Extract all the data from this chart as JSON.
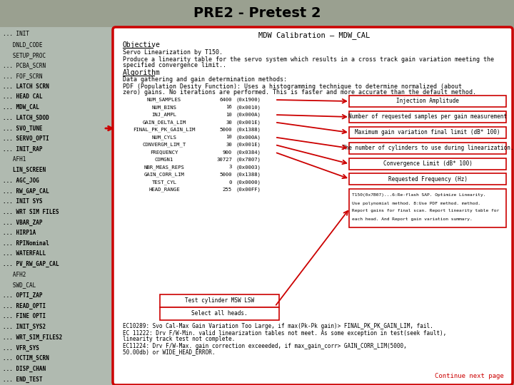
{
  "title": "PRE2 - Pretest 2",
  "title_bg": "#9aA48a",
  "header_text": "MDW Calibration – MDW_CAL",
  "objective_title": "Objective",
  "objective_body": "Servo Linearization by T150.\nProduce a linearity table for the servo system which results in a cross track gain variation meeting the\nspecified convergence limit..",
  "algorithm_title": "Algorithm",
  "algorithm_body": "Data gathering and gain determination methods:\nPDF (Population Desity Function): Uses a histogramming technique to determine normalized (about\nzero) gains. No iterations are performed. This is faster and more accurate than the default method.",
  "sidebar_items": [
    [
      "... INIT",
      false
    ],
    [
      "   DNLD_CODE",
      false
    ],
    [
      "   SETUP_PROC",
      false
    ],
    [
      "... PCBA_SCRN",
      false
    ],
    [
      "... FOF_SCRN",
      false
    ],
    [
      "... LATCH SCRN",
      true
    ],
    [
      "... HEAD CAL",
      true
    ],
    [
      "... MDW_CAL",
      true
    ],
    [
      "... LATCH_SDOD",
      true
    ],
    [
      "... SVO_TUNE",
      true
    ],
    [
      "... SERVO_OPTI",
      true
    ],
    [
      "... INIT_RAP",
      true
    ],
    [
      "   AFH1",
      false
    ],
    [
      "   LIN_SCREEN",
      true
    ],
    [
      "... AGC_JOG",
      true
    ],
    [
      "... RW_GAP_CAL",
      true
    ],
    [
      "... INIT SYS",
      true
    ],
    [
      "... WRT SIM FILES",
      true
    ],
    [
      "... VBAR_ZAP",
      true
    ],
    [
      "... HIRP1A",
      true
    ],
    [
      "... RPINominal",
      true
    ],
    [
      "... WATERFALL",
      true
    ],
    [
      "... PV_RW_GAP_CAL",
      true
    ],
    [
      "   AFH2",
      false
    ],
    [
      "   SWD_CAL",
      false
    ],
    [
      "... OPTI_ZAP",
      true
    ],
    [
      "... READ_OPTI",
      true
    ],
    [
      "... FINE OPTI",
      true
    ],
    [
      "... INIT_SYS2",
      true
    ],
    [
      "... WRT_SIM_FILES2",
      true
    ],
    [
      "... VFR_SYS",
      true
    ],
    [
      "... OCTIM_SCRN",
      true
    ],
    [
      "... DISP_CHAN",
      true
    ],
    [
      "... END_TEST",
      true
    ]
  ],
  "arrow_item_idx": 9,
  "param_table": [
    [
      "NUM_SAMPLES",
      "6400",
      "(0x1900)"
    ],
    [
      "NUM_BINS",
      "16",
      "(0x0010)"
    ],
    [
      "INJ_AMPL",
      "10",
      "(0x000A)"
    ],
    [
      "GAIN_DELTA_LIM",
      "30",
      "(0x001E)"
    ],
    [
      "FINAL_PK_PK_GAIN_LIM",
      "5000",
      "(0x1388)"
    ],
    [
      "NUM_CYLS",
      "10",
      "(0x000A)"
    ],
    [
      "CONVERGM_LIM_T",
      "30",
      "(0x001E)"
    ],
    [
      "FREQUENCY",
      "900",
      "(0x0384)"
    ],
    [
      "COMGN1",
      "30727",
      "(0x7807)"
    ],
    [
      "NBR_MEAS_REPS",
      "3",
      "(0x0003)"
    ],
    [
      "GAIN_CORR_LIM",
      "5000",
      "(0x1388)"
    ],
    [
      "TEST_CYL",
      "0",
      "(0x0000)"
    ],
    [
      "HEAD_RANGE",
      "255",
      "(0x00FF)"
    ]
  ],
  "annotation_boxes": [
    [
      "Injection Amplitude",
      1
    ],
    [
      "Number of requested samples per gain measurement",
      2
    ],
    [
      "Maximum gain variation final limit (dB* 100)",
      3
    ],
    [
      "The number of cylinders to use during linearization.",
      4
    ],
    [
      "Convergence Limit (dB* 100)",
      5
    ],
    [
      "Requested Frequency (Hz)",
      6
    ],
    [
      "T150(0x7B07)...6:Re-flash SAP. Optimize Linearity.\nUse polynomial method. 8:Use PDF method. method.\nReport gains for final scan. Report linearity table for\neach head. And Report gain variation summary.",
      7
    ]
  ],
  "bottom_boxes": [
    "Test cylinder MSW LSW",
    "Select all heads."
  ],
  "error_codes": "EC10289: Svo Cal-Max Gain Variation Too Large, if max(Pk-Pk gain)> FINAL_PK_PK_GAIN_LIM, fail.\nEC 11222: Drv F/W-Min. valid linearization tables not meet. As some exception in test(seek fault),\nlinearity track test not complete.\nEC11224: Drv F/W-Max. gain correction exceeeded, if max_gain_corr> GAIN_CORR_LIM(5000,\n50.00db) or WIDE_HEAD_ERROR.",
  "continue_text": "Continue next page",
  "border_color": "#cc0000",
  "arrow_color": "#cc0000",
  "sidebar_bg": "#b0bab0",
  "title_bar_bg": "#9aA090"
}
